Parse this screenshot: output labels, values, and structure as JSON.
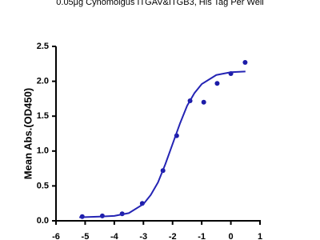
{
  "chart_data": {
    "type": "scatter",
    "title": "0.05μg Cynomolgus ITGAV&ITGB3, His Tag Per Well",
    "y_label": "Mean Abs.(OD450)",
    "xlim": [
      -6,
      1
    ],
    "xticks": [
      -6,
      -5,
      -4,
      -3,
      -2,
      -1,
      0,
      1
    ],
    "ylim": [
      0,
      2.5
    ],
    "yticks": [
      {
        "value": 0,
        "label": "0.0"
      },
      0.5,
      {
        "value": 1,
        "label": "1.0"
      },
      1.5,
      {
        "value": 2,
        "label": "2.0"
      },
      2.5
    ],
    "series": [
      {
        "kind": "points",
        "color": "#1c1ca8",
        "x": [
          -5.1,
          -4.41,
          -3.73,
          -3.04,
          -2.33,
          -1.86,
          -1.4,
          -0.93,
          -0.47,
          0,
          0.49
        ],
        "values": [
          0.06,
          0.07,
          0.1,
          0.25,
          0.72,
          1.22,
          1.72,
          1.7,
          1.97,
          2.11,
          2.27
        ]
      },
      {
        "kind": "fit",
        "color": "#2424b4",
        "x": [
          -5.2,
          -4.5,
          -4,
          -3.5,
          -3,
          -2.75,
          -2.5,
          -2.25,
          -2,
          -1.75,
          -1.5,
          -1.25,
          -1,
          -0.5,
          0,
          0.5
        ],
        "values": [
          0.05,
          0.06,
          0.07,
          0.11,
          0.24,
          0.37,
          0.55,
          0.81,
          1.1,
          1.39,
          1.65,
          1.83,
          1.96,
          2.09,
          2.13,
          2.14
        ]
      }
    ]
  }
}
